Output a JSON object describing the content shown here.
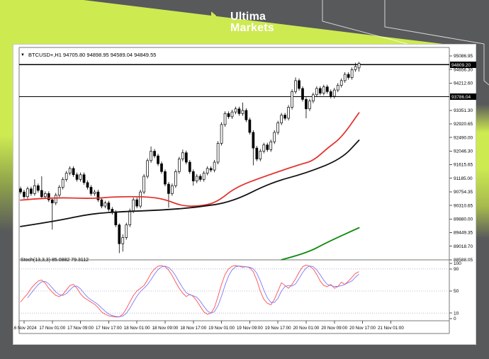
{
  "colors": {
    "accent_lime": "#cdea51",
    "header_gray": "#58595b",
    "candle_up": "#ffffff",
    "candle_down": "#000000",
    "candle_border": "#000000",
    "ma_fast": "#e3342f",
    "ma_slow": "#111111",
    "ma_long": "#0c8a0c",
    "stoch_main": "#ff4d4d",
    "stoch_signal": "#7a7aff",
    "level_dash": "#a9a9c9",
    "frame": "#7a7a7a",
    "tag_bg": "#000000",
    "tag_text": "#ffffff"
  },
  "header": {
    "brand_line1": "Ultima",
    "brand_line2": "Markets"
  },
  "chart_data": {
    "type": "candlestick",
    "symbol_title": "BTCUSD+,H1",
    "ohlc_title": "94705.80 94898.95 94589.04 94849.55",
    "y_axis": {
      "max": 95086.95,
      "min": 88588.05,
      "labels": [
        "95086.95",
        "94656.30",
        "94212.60",
        null,
        "93351.30",
        "92920.65",
        "92490.00",
        "92046.30",
        "91615.65",
        "91185.00",
        "90754.35",
        "90310.65",
        "89880.00",
        "89449.35",
        "89018.70",
        "88588.05"
      ]
    },
    "x_axis": {
      "labels": [
        "16 Nov 2024",
        "17 Nov 01:00",
        "17 Nov 09:00",
        "17 Nov 17:00",
        "18 Nov 01:00",
        "18 Nov 09:00",
        "18 Nov 17:00",
        "19 Nov 01:00",
        "19 Nov 09:00",
        "19 Nov 17:00",
        "20 Nov 01:00",
        "20 Nov 09:00",
        "20 Nov 17:00",
        "21 Nov 01:00"
      ]
    },
    "levels": [
      {
        "price": 94809.2,
        "label": "94809.20"
      },
      {
        "price": 93786.04,
        "label": "93786.04"
      }
    ],
    "candles": [
      [
        90850,
        90920,
        90680,
        90750
      ],
      [
        90750,
        90820,
        90530,
        90600
      ],
      [
        90600,
        90920,
        90530,
        90850
      ],
      [
        90850,
        90920,
        90630,
        90700
      ],
      [
        90700,
        91150,
        90630,
        90950
      ],
      [
        90950,
        91020,
        90730,
        90800
      ],
      [
        90800,
        91250,
        90530,
        90600
      ],
      [
        90600,
        90770,
        90530,
        90700
      ],
      [
        90700,
        90770,
        90430,
        90500
      ],
      [
        90500,
        90570,
        89550,
        90400
      ],
      [
        90400,
        90720,
        90330,
        90650
      ],
      [
        90650,
        90970,
        90580,
        90900
      ],
      [
        90900,
        91220,
        90830,
        91150
      ],
      [
        91150,
        91420,
        91080,
        91350
      ],
      [
        91350,
        91570,
        91280,
        91500
      ],
      [
        91500,
        91570,
        91230,
        91300
      ],
      [
        91300,
        91370,
        91080,
        91150
      ],
      [
        91150,
        91370,
        91080,
        91300
      ],
      [
        91300,
        91370,
        90980,
        91050
      ],
      [
        91050,
        91120,
        90830,
        90900
      ],
      [
        90900,
        90970,
        90630,
        90700
      ],
      [
        90700,
        90820,
        90630,
        90750
      ],
      [
        90750,
        90820,
        90430,
        90500
      ],
      [
        90500,
        90570,
        90230,
        90300
      ],
      [
        90300,
        90470,
        90230,
        90400
      ],
      [
        90400,
        90470,
        90130,
        90200
      ],
      [
        90200,
        90270,
        90030,
        90100
      ],
      [
        90100,
        90170,
        89630,
        89700
      ],
      [
        89700,
        89750,
        88800,
        89100
      ],
      [
        89100,
        89400,
        88850,
        89300
      ],
      [
        89300,
        89770,
        89230,
        89700
      ],
      [
        89700,
        90220,
        89630,
        90150
      ],
      [
        90150,
        90570,
        90080,
        90500
      ],
      [
        90500,
        90570,
        90230,
        90300
      ],
      [
        90300,
        90820,
        90230,
        90750
      ],
      [
        90750,
        91320,
        90680,
        91250
      ],
      [
        91250,
        91820,
        91180,
        91750
      ],
      [
        91750,
        92200,
        91680,
        92050
      ],
      [
        92050,
        92120,
        91830,
        91900
      ],
      [
        91900,
        91970,
        91580,
        91650
      ],
      [
        91650,
        91720,
        91330,
        91400
      ],
      [
        91400,
        91470,
        90930,
        91000
      ],
      [
        91000,
        91070,
        90250,
        90700
      ],
      [
        90700,
        91020,
        90630,
        90950
      ],
      [
        90950,
        91470,
        90880,
        91400
      ],
      [
        91400,
        91870,
        91330,
        91800
      ],
      [
        91800,
        92100,
        91730,
        92000
      ],
      [
        92000,
        92070,
        91630,
        91700
      ],
      [
        91700,
        91770,
        91330,
        91400
      ],
      [
        91400,
        91470,
        90950,
        91100
      ],
      [
        91100,
        91320,
        91030,
        91250
      ],
      [
        91250,
        91320,
        91080,
        91150
      ],
      [
        91150,
        91420,
        91080,
        91350
      ],
      [
        91350,
        91570,
        91280,
        91500
      ],
      [
        91500,
        91570,
        91380,
        91450
      ],
      [
        91450,
        91770,
        91380,
        91700
      ],
      [
        91700,
        92370,
        91630,
        92300
      ],
      [
        92300,
        92970,
        92230,
        92900
      ],
      [
        92900,
        93320,
        92830,
        93250
      ],
      [
        93250,
        93320,
        93080,
        93150
      ],
      [
        93150,
        93370,
        93080,
        93300
      ],
      [
        93300,
        93470,
        93230,
        93400
      ],
      [
        93400,
        93470,
        93180,
        93250
      ],
      [
        93250,
        93600,
        93180,
        93350
      ],
      [
        93350,
        93420,
        92980,
        93050
      ],
      [
        93050,
        93120,
        92580,
        92650
      ],
      [
        92650,
        92720,
        91600,
        92150
      ],
      [
        92150,
        92220,
        91730,
        91800
      ],
      [
        91800,
        92120,
        91730,
        92050
      ],
      [
        92050,
        92320,
        91980,
        92250
      ],
      [
        92250,
        92320,
        92030,
        92100
      ],
      [
        92100,
        92420,
        92030,
        92350
      ],
      [
        92350,
        92720,
        92280,
        92650
      ],
      [
        92650,
        93020,
        92580,
        92950
      ],
      [
        92950,
        93270,
        92880,
        93200
      ],
      [
        93200,
        93270,
        93030,
        93100
      ],
      [
        93100,
        93520,
        93030,
        93450
      ],
      [
        93450,
        94020,
        93380,
        93950
      ],
      [
        93950,
        94400,
        93880,
        94300
      ],
      [
        94300,
        94370,
        93980,
        94050
      ],
      [
        94050,
        94120,
        93630,
        93700
      ],
      [
        93700,
        93770,
        93100,
        93400
      ],
      [
        93400,
        93720,
        93330,
        93650
      ],
      [
        93650,
        93920,
        93580,
        93850
      ],
      [
        93850,
        94120,
        93780,
        94050
      ],
      [
        94050,
        94120,
        93830,
        93900
      ],
      [
        93900,
        94170,
        93830,
        94100
      ],
      [
        94100,
        94170,
        93880,
        93950
      ],
      [
        93950,
        94020,
        93730,
        93800
      ],
      [
        93800,
        94070,
        93730,
        94000
      ],
      [
        94000,
        94220,
        93930,
        94150
      ],
      [
        94150,
        94370,
        94080,
        94300
      ],
      [
        94300,
        94570,
        94230,
        94500
      ],
      [
        94500,
        94570,
        94330,
        94400
      ],
      [
        94400,
        94720,
        94330,
        94650
      ],
      [
        94650,
        94870,
        94580,
        94750
      ],
      [
        94705.8,
        94898.95,
        94589.04,
        94849.55
      ]
    ],
    "moving_averages": [
      {
        "name": "fast-ma",
        "color_key": "ma_fast",
        "points": [
          [
            0,
            90490
          ],
          [
            9,
            90580
          ],
          [
            20,
            90535
          ],
          [
            27,
            90600
          ],
          [
            36,
            90600
          ],
          [
            41,
            90515
          ],
          [
            46,
            90290
          ],
          [
            52,
            90310
          ],
          [
            56,
            90450
          ],
          [
            61,
            90900
          ],
          [
            69,
            91240
          ],
          [
            79,
            91620
          ],
          [
            83,
            91740
          ],
          [
            87,
            92145
          ],
          [
            91,
            92480
          ],
          [
            96,
            93275
          ]
        ]
      },
      {
        "name": "slow-ma",
        "color_key": "ma_slow",
        "points": [
          [
            0,
            89650
          ],
          [
            10,
            89820
          ],
          [
            20,
            90060
          ],
          [
            30,
            90130
          ],
          [
            40,
            90170
          ],
          [
            50,
            90260
          ],
          [
            60,
            90430
          ],
          [
            71,
            91050
          ],
          [
            81,
            91350
          ],
          [
            91,
            91800
          ],
          [
            96,
            92400
          ]
        ]
      },
      {
        "name": "long-ma",
        "color_key": "ma_long",
        "points": [
          [
            74,
            88590
          ],
          [
            81,
            88790
          ],
          [
            87,
            89150
          ],
          [
            96,
            89610
          ]
        ]
      }
    ],
    "stochastic": {
      "label": "Stoch(13,3,3) 85.0882 79.3112",
      "scale_values": [
        100,
        90,
        50,
        10,
        0
      ],
      "level_lines": [
        90,
        50,
        10
      ],
      "range": [
        0,
        100
      ],
      "signal_smoothing": 3,
      "main": [
        30,
        38,
        45,
        55,
        62,
        68,
        70,
        64,
        55,
        48,
        42,
        40,
        44,
        52,
        60,
        62,
        55,
        45,
        38,
        34,
        30,
        26,
        20,
        12,
        8,
        5,
        4,
        3,
        3,
        8,
        18,
        30,
        42,
        50,
        55,
        60,
        70,
        82,
        90,
        95,
        96,
        94,
        88,
        78,
        66,
        55,
        46,
        40,
        44,
        40,
        32,
        22,
        12,
        8,
        10,
        20,
        40,
        62,
        80,
        90,
        95,
        96,
        95,
        93,
        94,
        92,
        85,
        70,
        50,
        35,
        28,
        25,
        35,
        50,
        65,
        60,
        55,
        62,
        72,
        84,
        94,
        97,
        95,
        90,
        80,
        68,
        60,
        58,
        62,
        55,
        58,
        66,
        62,
        68,
        75,
        82,
        85.09
      ]
    }
  }
}
